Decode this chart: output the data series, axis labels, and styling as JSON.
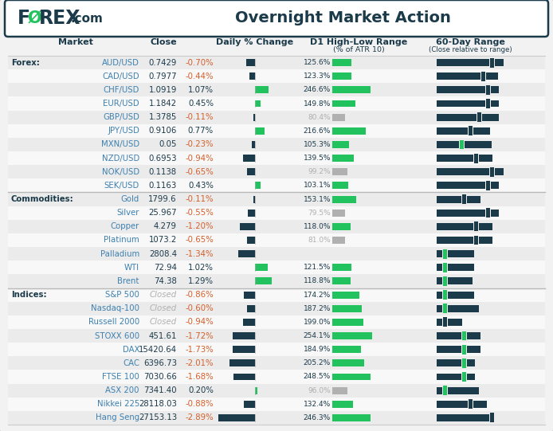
{
  "title": "Overnight Market Action",
  "rows": [
    {
      "section": "Forex:",
      "name": "AUD/USD",
      "close": "0.7429",
      "close_italic": false,
      "pct": -0.7,
      "pct_str": "-0.70%",
      "atr": 125.6,
      "atr_str": "125.6%",
      "atr_grey": false,
      "r60l": 75,
      "r60r": 13,
      "r60green": false
    },
    {
      "section": "",
      "name": "CAD/USD",
      "close": "0.7977",
      "close_italic": false,
      "pct": -0.44,
      "pct_str": "-0.44%",
      "atr": 123.3,
      "atr_str": "123.3%",
      "atr_grey": false,
      "r60l": 62,
      "r60r": 18,
      "r60green": false
    },
    {
      "section": "",
      "name": "CHF/USD",
      "close": "1.0919",
      "close_italic": false,
      "pct": 1.07,
      "pct_str": "1.07%",
      "atr": 246.6,
      "atr_str": "246.6%",
      "atr_grey": false,
      "r60l": 69,
      "r60r": 12,
      "r60green": false
    },
    {
      "section": "",
      "name": "EUR/USD",
      "close": "1.1842",
      "close_italic": false,
      "pct": 0.45,
      "pct_str": "0.45%",
      "atr": 149.8,
      "atr_str": "149.8%",
      "atr_grey": false,
      "r60l": 69,
      "r60r": 12,
      "r60green": false
    },
    {
      "section": "",
      "name": "GBP/USD",
      "close": "1.3785",
      "close_italic": false,
      "pct": -0.11,
      "pct_str": "-0.11%",
      "atr": 80.4,
      "atr_str": "80.4%",
      "atr_grey": true,
      "r60l": 57,
      "r60r": 24,
      "r60green": false
    },
    {
      "section": "",
      "name": "JPY/USD",
      "close": "0.9106",
      "close_italic": false,
      "pct": 0.77,
      "pct_str": "0.77%",
      "atr": 216.6,
      "atr_str": "216.6%",
      "atr_grey": false,
      "r60l": 44,
      "r60r": 24,
      "r60green": false
    },
    {
      "section": "",
      "name": "MXN/USD",
      "close": "0.05",
      "close_italic": false,
      "pct": -0.23,
      "pct_str": "-0.23%",
      "atr": 105.3,
      "atr_str": "105.3%",
      "atr_grey": false,
      "r60l": 32,
      "r60r": 38,
      "r60green": true
    },
    {
      "section": "",
      "name": "NZD/USD",
      "close": "0.6953",
      "close_italic": false,
      "pct": -0.94,
      "pct_str": "-0.94%",
      "atr": 139.5,
      "atr_str": "139.5%",
      "atr_grey": false,
      "r60l": 52,
      "r60r": 20,
      "r60green": false
    },
    {
      "section": "",
      "name": "NOK/USD",
      "close": "0.1138",
      "close_italic": false,
      "pct": -0.65,
      "pct_str": "-0.65%",
      "atr": 99.2,
      "atr_str": "99.2%",
      "atr_grey": true,
      "r60l": 75,
      "r60r": 13,
      "r60green": false
    },
    {
      "section": "",
      "name": "SEK/USD",
      "close": "0.1163",
      "close_italic": false,
      "pct": 0.43,
      "pct_str": "0.43%",
      "atr": 103.1,
      "atr_str": "103.1%",
      "atr_grey": false,
      "r60l": 69,
      "r60r": 12,
      "r60green": false
    },
    {
      "section": "Commodities:",
      "name": "Gold",
      "close": "1799.6",
      "close_italic": false,
      "pct": -0.11,
      "pct_str": "-0.11%",
      "atr": 153.1,
      "atr_str": "153.1%",
      "atr_grey": false,
      "r60l": 35,
      "r60r": 20,
      "r60green": false
    },
    {
      "section": "",
      "name": "Silver",
      "close": "25.967",
      "close_italic": false,
      "pct": -0.55,
      "pct_str": "-0.55%",
      "atr": 79.5,
      "atr_str": "79.5%",
      "atr_grey": true,
      "r60l": 69,
      "r60r": 12,
      "r60green": false
    },
    {
      "section": "",
      "name": "Copper",
      "close": "4.279",
      "close_italic": false,
      "pct": -1.2,
      "pct_str": "-1.20%",
      "atr": 118.0,
      "atr_str": "118.0%",
      "atr_grey": false,
      "r60l": 52,
      "r60r": 20,
      "r60green": false
    },
    {
      "section": "",
      "name": "Platinum",
      "close": "1073.2",
      "close_italic": false,
      "pct": -0.65,
      "pct_str": "-0.65%",
      "atr": 81.0,
      "atr_str": "81.0%",
      "atr_grey": true,
      "r60l": 52,
      "r60r": 20,
      "r60green": false
    },
    {
      "section": "",
      "name": "Palladium",
      "close": "2808.4",
      "close_italic": false,
      "pct": -1.34,
      "pct_str": "-1.34%",
      "atr": 0,
      "atr_str": "",
      "atr_grey": false,
      "r60l": 8,
      "r60r": 38,
      "r60green": true
    },
    {
      "section": "",
      "name": "WTI",
      "close": "72.94",
      "close_italic": false,
      "pct": 1.02,
      "pct_str": "1.02%",
      "atr": 121.5,
      "atr_str": "121.5%",
      "atr_grey": false,
      "r60l": 8,
      "r60r": 38,
      "r60green": true
    },
    {
      "section": "",
      "name": "Brent",
      "close": "74.38",
      "close_italic": false,
      "pct": 1.29,
      "pct_str": "1.29%",
      "atr": 118.8,
      "atr_str": "118.8%",
      "atr_grey": false,
      "r60l": 8,
      "r60r": 35,
      "r60green": true
    },
    {
      "section": "Indices:",
      "name": "S&P 500",
      "close": "Closed",
      "close_italic": true,
      "pct": -0.86,
      "pct_str": "-0.86%",
      "atr": 174.2,
      "atr_str": "174.2%",
      "atr_grey": false,
      "r60l": 8,
      "r60r": 38,
      "r60green": true
    },
    {
      "section": "",
      "name": "Nasdaq-100",
      "close": "Closed",
      "close_italic": true,
      "pct": -0.6,
      "pct_str": "-0.60%",
      "atr": 187.2,
      "atr_str": "187.2%",
      "atr_grey": false,
      "r60l": 8,
      "r60r": 44,
      "r60green": true
    },
    {
      "section": "",
      "name": "Russell 2000",
      "close": "Closed",
      "close_italic": true,
      "pct": -0.94,
      "pct_str": "-0.94%",
      "atr": 199.0,
      "atr_str": "199.0%",
      "atr_grey": false,
      "r60l": 8,
      "r60r": 20,
      "r60green": false
    },
    {
      "section": "",
      "name": "STOXX 600",
      "close": "451.61",
      "close_italic": false,
      "pct": -1.72,
      "pct_str": "-1.72%",
      "atr": 254.1,
      "atr_str": "254.1%",
      "atr_grey": false,
      "r60l": 35,
      "r60r": 20,
      "r60green": true
    },
    {
      "section": "",
      "name": "DAX",
      "close": "15420.64",
      "close_italic": false,
      "pct": -1.73,
      "pct_str": "-1.73%",
      "atr": 184.9,
      "atr_str": "184.9%",
      "atr_grey": false,
      "r60l": 35,
      "r60r": 20,
      "r60green": true
    },
    {
      "section": "",
      "name": "CAC",
      "close": "6396.73",
      "close_italic": false,
      "pct": -2.01,
      "pct_str": "-2.01%",
      "atr": 205.2,
      "atr_str": "205.2%",
      "atr_grey": false,
      "r60l": 35,
      "r60r": 12,
      "r60green": true
    },
    {
      "section": "",
      "name": "FTSE 100",
      "close": "7030.66",
      "close_italic": false,
      "pct": -1.68,
      "pct_str": "-1.68%",
      "atr": 248.5,
      "atr_str": "248.5%",
      "atr_grey": false,
      "r60l": 35,
      "r60r": 12,
      "r60green": true
    },
    {
      "section": "",
      "name": "ASX 200",
      "close": "7341.40",
      "close_italic": false,
      "pct": 0.2,
      "pct_str": "0.20%",
      "atr": 96.0,
      "atr_str": "96.0%",
      "atr_grey": true,
      "r60l": 8,
      "r60r": 44,
      "r60green": true
    },
    {
      "section": "",
      "name": "Nikkei 225",
      "close": "28118.03",
      "close_italic": false,
      "pct": -0.88,
      "pct_str": "-0.88%",
      "atr": 132.4,
      "atr_str": "132.4%",
      "atr_grey": false,
      "r60l": 44,
      "r60r": 20,
      "r60green": false
    },
    {
      "section": "",
      "name": "Hang Seng",
      "close": "27153.13",
      "close_italic": false,
      "pct": -2.89,
      "pct_str": "-2.89%",
      "atr": 246.3,
      "atr_str": "246.3%",
      "atr_grey": false,
      "r60l": 75,
      "r60r": 0,
      "r60green": false
    }
  ],
  "DARK": "#1b3a4a",
  "GREEN": "#22c35e",
  "ORANGE": "#d45f2a",
  "BLUE": "#3d80b0",
  "GREY_T": "#b0b0b0",
  "BG_EVEN": "#ebebeb",
  "BG_ODD": "#f8f8f8",
  "WHITE": "#ffffff"
}
